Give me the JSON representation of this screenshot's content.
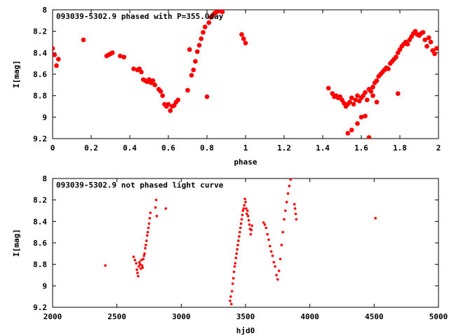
{
  "chart_data": [
    {
      "type": "scatter",
      "title": "093039-5302.9 phased with P=355.0day",
      "xlabel": "phase",
      "ylabel": "I[mag]",
      "xlim": [
        0,
        2
      ],
      "ylim": [
        8,
        9.2
      ],
      "y_inverted": true,
      "grid": false,
      "xticks": [
        "0",
        "0.2",
        "0.4",
        "0.6",
        "0.8",
        "1",
        "1.2",
        "1.4",
        "1.6",
        "1.8",
        "2"
      ],
      "yticks": [
        "8",
        "8.2",
        "8.4",
        "8.6",
        "8.8",
        "9",
        "9.2"
      ],
      "marker_color": "#ff0000",
      "series": [
        {
          "x": [
            0.0,
            0.01,
            0.02,
            0.03,
            0.16,
            0.28,
            0.29,
            0.3,
            0.31,
            0.35,
            0.37,
            0.42,
            0.44,
            0.45,
            0.46,
            0.47,
            0.48,
            0.49,
            0.5,
            0.51,
            0.52,
            0.53,
            0.55,
            0.56,
            0.57,
            0.58,
            0.59,
            0.6,
            0.61,
            0.62,
            0.63,
            0.64,
            0.65,
            0.7,
            0.71,
            0.72,
            0.73,
            0.74,
            0.75,
            0.76,
            0.77,
            0.78,
            0.79,
            0.8,
            0.81,
            0.82,
            0.83,
            0.84,
            0.85,
            0.86,
            0.87,
            0.88,
            0.98,
            0.99,
            1.0,
            1.43,
            1.45,
            1.46,
            1.47,
            1.48,
            1.49,
            1.5,
            1.51,
            1.52,
            1.53,
            1.54,
            1.55,
            1.56,
            1.57,
            1.58,
            1.59,
            1.6,
            1.61,
            1.62,
            1.63,
            1.64,
            1.65,
            1.66,
            1.67,
            1.68,
            1.69,
            1.7,
            1.71,
            1.72,
            1.73,
            1.74,
            1.75,
            1.76,
            1.77,
            1.78,
            1.79,
            1.8,
            1.81,
            1.82,
            1.83,
            1.84,
            1.85,
            1.86,
            1.87,
            1.88,
            1.89,
            1.9,
            1.91,
            1.92,
            1.93,
            1.94,
            1.95,
            1.96,
            1.97,
            1.98,
            1.99,
            1.53,
            1.55,
            1.58,
            1.6,
            1.62,
            1.64,
            1.66,
            1.68,
            1.79
          ],
          "y": [
            8.36,
            8.42,
            8.52,
            8.46,
            8.28,
            8.43,
            8.42,
            8.41,
            8.4,
            8.43,
            8.44,
            8.55,
            8.56,
            8.55,
            8.58,
            8.65,
            8.66,
            8.67,
            8.65,
            8.68,
            8.66,
            8.7,
            8.74,
            8.76,
            8.8,
            8.88,
            8.9,
            8.88,
            8.94,
            8.9,
            8.89,
            8.86,
            8.84,
            8.75,
            8.37,
            8.61,
            8.56,
            8.48,
            8.39,
            8.33,
            8.27,
            8.21,
            8.16,
            8.81,
            8.12,
            8.07,
            8.05,
            8.03,
            8.02,
            8.01,
            8.01,
            8.02,
            8.23,
            8.27,
            8.31,
            8.73,
            8.78,
            8.81,
            8.8,
            8.82,
            8.81,
            8.84,
            8.87,
            8.9,
            8.88,
            8.86,
            8.82,
            8.88,
            8.84,
            8.8,
            8.85,
            8.82,
            8.8,
            8.77,
            8.84,
            8.74,
            8.76,
            8.72,
            8.68,
            8.66,
            8.62,
            8.6,
            8.58,
            8.56,
            8.54,
            8.55,
            8.5,
            8.48,
            8.46,
            8.44,
            8.4,
            8.37,
            8.34,
            8.32,
            8.3,
            8.32,
            8.28,
            8.25,
            8.22,
            8.2,
            8.23,
            8.24,
            8.22,
            8.21,
            8.28,
            8.34,
            8.26,
            8.3,
            8.38,
            8.41,
            8.36,
            9.15,
            9.12,
            9.06,
            9.0,
            8.99,
            9.19,
            8.8,
            8.86,
            8.78
          ]
        }
      ]
    },
    {
      "type": "scatter",
      "title": "093039-5302.9 not phased light curve",
      "xlabel": "hjd0",
      "ylabel": "I[mag]",
      "xlim": [
        2000,
        5000
      ],
      "ylim": [
        8,
        9.2
      ],
      "y_inverted": true,
      "grid": false,
      "xticks": [
        "2000",
        "2500",
        "3000",
        "3500",
        "4000",
        "4500",
        "5000"
      ],
      "yticks": [
        "8",
        "8.2",
        "8.4",
        "8.6",
        "8.8",
        "9",
        "9.2"
      ],
      "marker_color": "#ff0000",
      "series": [
        {
          "x": [
            2410,
            2630,
            2640,
            2650,
            2655,
            2660,
            2665,
            2670,
            2675,
            2680,
            2685,
            2690,
            2695,
            2700,
            2705,
            2710,
            2715,
            2720,
            2725,
            2730,
            2735,
            2740,
            2745,
            2750,
            2755,
            2760,
            2800,
            2805,
            2810,
            2880,
            3380,
            3385,
            3390,
            3395,
            3400,
            3405,
            3410,
            3415,
            3420,
            3425,
            3430,
            3435,
            3440,
            3445,
            3450,
            3455,
            3460,
            3465,
            3470,
            3475,
            3480,
            3485,
            3490,
            3495,
            3500,
            3505,
            3510,
            3515,
            3520,
            3525,
            3530,
            3535,
            3540,
            3545,
            3550,
            3640,
            3650,
            3660,
            3670,
            3680,
            3690,
            3700,
            3710,
            3720,
            3730,
            3740,
            3750,
            3760,
            3770,
            3780,
            3790,
            3800,
            3810,
            3820,
            3830,
            3840,
            3850,
            3880,
            3885,
            3890,
            3895,
            4510
          ],
          "y": [
            8.81,
            8.73,
            8.76,
            8.79,
            8.85,
            8.88,
            8.91,
            8.82,
            8.78,
            8.8,
            8.84,
            8.76,
            8.81,
            8.83,
            8.75,
            8.72,
            8.7,
            8.65,
            8.62,
            8.58,
            8.53,
            8.5,
            8.46,
            8.42,
            8.37,
            8.32,
            8.27,
            8.2,
            8.35,
            8.28,
            9.14,
            9.1,
            9.17,
            9.05,
            8.98,
            8.93,
            8.87,
            8.82,
            8.79,
            8.74,
            8.7,
            8.66,
            8.62,
            8.58,
            8.54,
            8.5,
            8.46,
            8.42,
            8.38,
            8.34,
            8.3,
            8.28,
            8.25,
            8.19,
            8.22,
            8.28,
            8.33,
            8.3,
            8.35,
            8.39,
            8.43,
            8.47,
            8.52,
            8.48,
            8.44,
            8.41,
            8.43,
            8.46,
            8.52,
            8.57,
            8.63,
            8.68,
            8.72,
            8.78,
            8.82,
            8.9,
            8.94,
            8.86,
            8.75,
            8.62,
            8.5,
            8.38,
            8.3,
            8.22,
            8.14,
            8.07,
            8.01,
            8.24,
            8.28,
            8.33,
            8.38,
            8.37
          ]
        }
      ]
    }
  ]
}
